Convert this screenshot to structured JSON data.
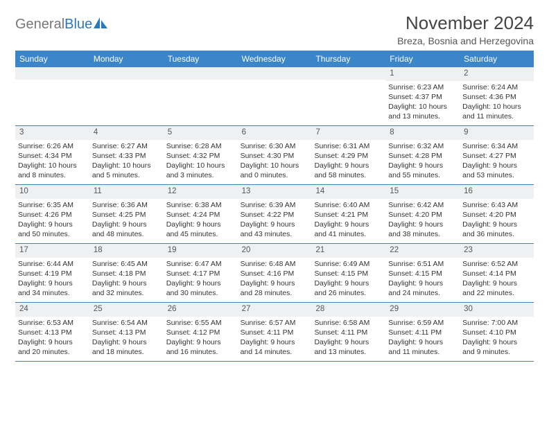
{
  "brand": {
    "part1": "General",
    "part2": "Blue"
  },
  "title": "November 2024",
  "location": "Breza, Bosnia and Herzegovina",
  "colors": {
    "header_bg": "#3a86c8",
    "header_text": "#ffffff",
    "daynum_bg": "#eef0f2",
    "week_border": "#4a7caa"
  },
  "weekdays": [
    "Sunday",
    "Monday",
    "Tuesday",
    "Wednesday",
    "Thursday",
    "Friday",
    "Saturday"
  ],
  "weeks": [
    [
      null,
      null,
      null,
      null,
      null,
      {
        "n": "1",
        "sr": "Sunrise: 6:23 AM",
        "ss": "Sunset: 4:37 PM",
        "dl1": "Daylight: 10 hours",
        "dl2": "and 13 minutes."
      },
      {
        "n": "2",
        "sr": "Sunrise: 6:24 AM",
        "ss": "Sunset: 4:36 PM",
        "dl1": "Daylight: 10 hours",
        "dl2": "and 11 minutes."
      }
    ],
    [
      {
        "n": "3",
        "sr": "Sunrise: 6:26 AM",
        "ss": "Sunset: 4:34 PM",
        "dl1": "Daylight: 10 hours",
        "dl2": "and 8 minutes."
      },
      {
        "n": "4",
        "sr": "Sunrise: 6:27 AM",
        "ss": "Sunset: 4:33 PM",
        "dl1": "Daylight: 10 hours",
        "dl2": "and 5 minutes."
      },
      {
        "n": "5",
        "sr": "Sunrise: 6:28 AM",
        "ss": "Sunset: 4:32 PM",
        "dl1": "Daylight: 10 hours",
        "dl2": "and 3 minutes."
      },
      {
        "n": "6",
        "sr": "Sunrise: 6:30 AM",
        "ss": "Sunset: 4:30 PM",
        "dl1": "Daylight: 10 hours",
        "dl2": "and 0 minutes."
      },
      {
        "n": "7",
        "sr": "Sunrise: 6:31 AM",
        "ss": "Sunset: 4:29 PM",
        "dl1": "Daylight: 9 hours",
        "dl2": "and 58 minutes."
      },
      {
        "n": "8",
        "sr": "Sunrise: 6:32 AM",
        "ss": "Sunset: 4:28 PM",
        "dl1": "Daylight: 9 hours",
        "dl2": "and 55 minutes."
      },
      {
        "n": "9",
        "sr": "Sunrise: 6:34 AM",
        "ss": "Sunset: 4:27 PM",
        "dl1": "Daylight: 9 hours",
        "dl2": "and 53 minutes."
      }
    ],
    [
      {
        "n": "10",
        "sr": "Sunrise: 6:35 AM",
        "ss": "Sunset: 4:26 PM",
        "dl1": "Daylight: 9 hours",
        "dl2": "and 50 minutes."
      },
      {
        "n": "11",
        "sr": "Sunrise: 6:36 AM",
        "ss": "Sunset: 4:25 PM",
        "dl1": "Daylight: 9 hours",
        "dl2": "and 48 minutes."
      },
      {
        "n": "12",
        "sr": "Sunrise: 6:38 AM",
        "ss": "Sunset: 4:24 PM",
        "dl1": "Daylight: 9 hours",
        "dl2": "and 45 minutes."
      },
      {
        "n": "13",
        "sr": "Sunrise: 6:39 AM",
        "ss": "Sunset: 4:22 PM",
        "dl1": "Daylight: 9 hours",
        "dl2": "and 43 minutes."
      },
      {
        "n": "14",
        "sr": "Sunrise: 6:40 AM",
        "ss": "Sunset: 4:21 PM",
        "dl1": "Daylight: 9 hours",
        "dl2": "and 41 minutes."
      },
      {
        "n": "15",
        "sr": "Sunrise: 6:42 AM",
        "ss": "Sunset: 4:20 PM",
        "dl1": "Daylight: 9 hours",
        "dl2": "and 38 minutes."
      },
      {
        "n": "16",
        "sr": "Sunrise: 6:43 AM",
        "ss": "Sunset: 4:20 PM",
        "dl1": "Daylight: 9 hours",
        "dl2": "and 36 minutes."
      }
    ],
    [
      {
        "n": "17",
        "sr": "Sunrise: 6:44 AM",
        "ss": "Sunset: 4:19 PM",
        "dl1": "Daylight: 9 hours",
        "dl2": "and 34 minutes."
      },
      {
        "n": "18",
        "sr": "Sunrise: 6:45 AM",
        "ss": "Sunset: 4:18 PM",
        "dl1": "Daylight: 9 hours",
        "dl2": "and 32 minutes."
      },
      {
        "n": "19",
        "sr": "Sunrise: 6:47 AM",
        "ss": "Sunset: 4:17 PM",
        "dl1": "Daylight: 9 hours",
        "dl2": "and 30 minutes."
      },
      {
        "n": "20",
        "sr": "Sunrise: 6:48 AM",
        "ss": "Sunset: 4:16 PM",
        "dl1": "Daylight: 9 hours",
        "dl2": "and 28 minutes."
      },
      {
        "n": "21",
        "sr": "Sunrise: 6:49 AM",
        "ss": "Sunset: 4:15 PM",
        "dl1": "Daylight: 9 hours",
        "dl2": "and 26 minutes."
      },
      {
        "n": "22",
        "sr": "Sunrise: 6:51 AM",
        "ss": "Sunset: 4:15 PM",
        "dl1": "Daylight: 9 hours",
        "dl2": "and 24 minutes."
      },
      {
        "n": "23",
        "sr": "Sunrise: 6:52 AM",
        "ss": "Sunset: 4:14 PM",
        "dl1": "Daylight: 9 hours",
        "dl2": "and 22 minutes."
      }
    ],
    [
      {
        "n": "24",
        "sr": "Sunrise: 6:53 AM",
        "ss": "Sunset: 4:13 PM",
        "dl1": "Daylight: 9 hours",
        "dl2": "and 20 minutes."
      },
      {
        "n": "25",
        "sr": "Sunrise: 6:54 AM",
        "ss": "Sunset: 4:13 PM",
        "dl1": "Daylight: 9 hours",
        "dl2": "and 18 minutes."
      },
      {
        "n": "26",
        "sr": "Sunrise: 6:55 AM",
        "ss": "Sunset: 4:12 PM",
        "dl1": "Daylight: 9 hours",
        "dl2": "and 16 minutes."
      },
      {
        "n": "27",
        "sr": "Sunrise: 6:57 AM",
        "ss": "Sunset: 4:11 PM",
        "dl1": "Daylight: 9 hours",
        "dl2": "and 14 minutes."
      },
      {
        "n": "28",
        "sr": "Sunrise: 6:58 AM",
        "ss": "Sunset: 4:11 PM",
        "dl1": "Daylight: 9 hours",
        "dl2": "and 13 minutes."
      },
      {
        "n": "29",
        "sr": "Sunrise: 6:59 AM",
        "ss": "Sunset: 4:11 PM",
        "dl1": "Daylight: 9 hours",
        "dl2": "and 11 minutes."
      },
      {
        "n": "30",
        "sr": "Sunrise: 7:00 AM",
        "ss": "Sunset: 4:10 PM",
        "dl1": "Daylight: 9 hours",
        "dl2": "and 9 minutes."
      }
    ]
  ]
}
